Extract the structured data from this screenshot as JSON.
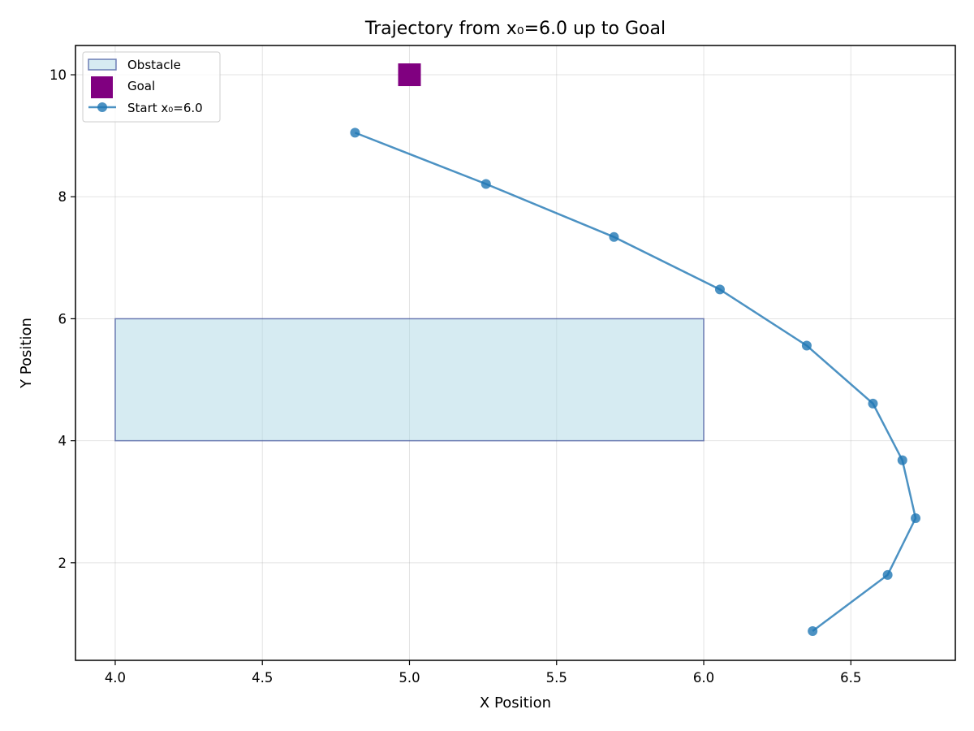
{
  "chart_data": {
    "type": "line",
    "title": "Trajectory from x₀=6.0 up to Goal",
    "xlabel": "X Position",
    "ylabel": "Y Position",
    "xlim": [
      3.865,
      6.855
    ],
    "ylim": [
      0.4,
      10.48
    ],
    "xticks": [
      4.0,
      4.5,
      5.0,
      5.5,
      6.0,
      6.5
    ],
    "xtick_labels": [
      "4.0",
      "4.5",
      "5.0",
      "5.5",
      "6.0",
      "6.5"
    ],
    "yticks": [
      2,
      4,
      6,
      8,
      10
    ],
    "ytick_labels": [
      "2",
      "4",
      "6",
      "8",
      "10"
    ],
    "grid": true,
    "legend_position": "top-left",
    "obstacle": {
      "name": "Obstacle",
      "x": [
        4.0,
        6.0
      ],
      "y": [
        4.0,
        6.0
      ],
      "fill_color": "#add8e6",
      "edge_color": "#3b4d9a"
    },
    "goal": {
      "name": "Goal",
      "x": 5.0,
      "y": 10.0,
      "color": "#800080"
    },
    "series": [
      {
        "name": "Start x₀=6.0",
        "color": "#1f77b4",
        "x": [
          6.37,
          6.625,
          6.72,
          6.675,
          6.575,
          6.35,
          6.055,
          5.695,
          5.26,
          4.815
        ],
        "y": [
          0.88,
          1.8,
          2.73,
          3.68,
          4.61,
          5.56,
          6.48,
          7.34,
          8.21,
          9.05
        ]
      }
    ]
  }
}
